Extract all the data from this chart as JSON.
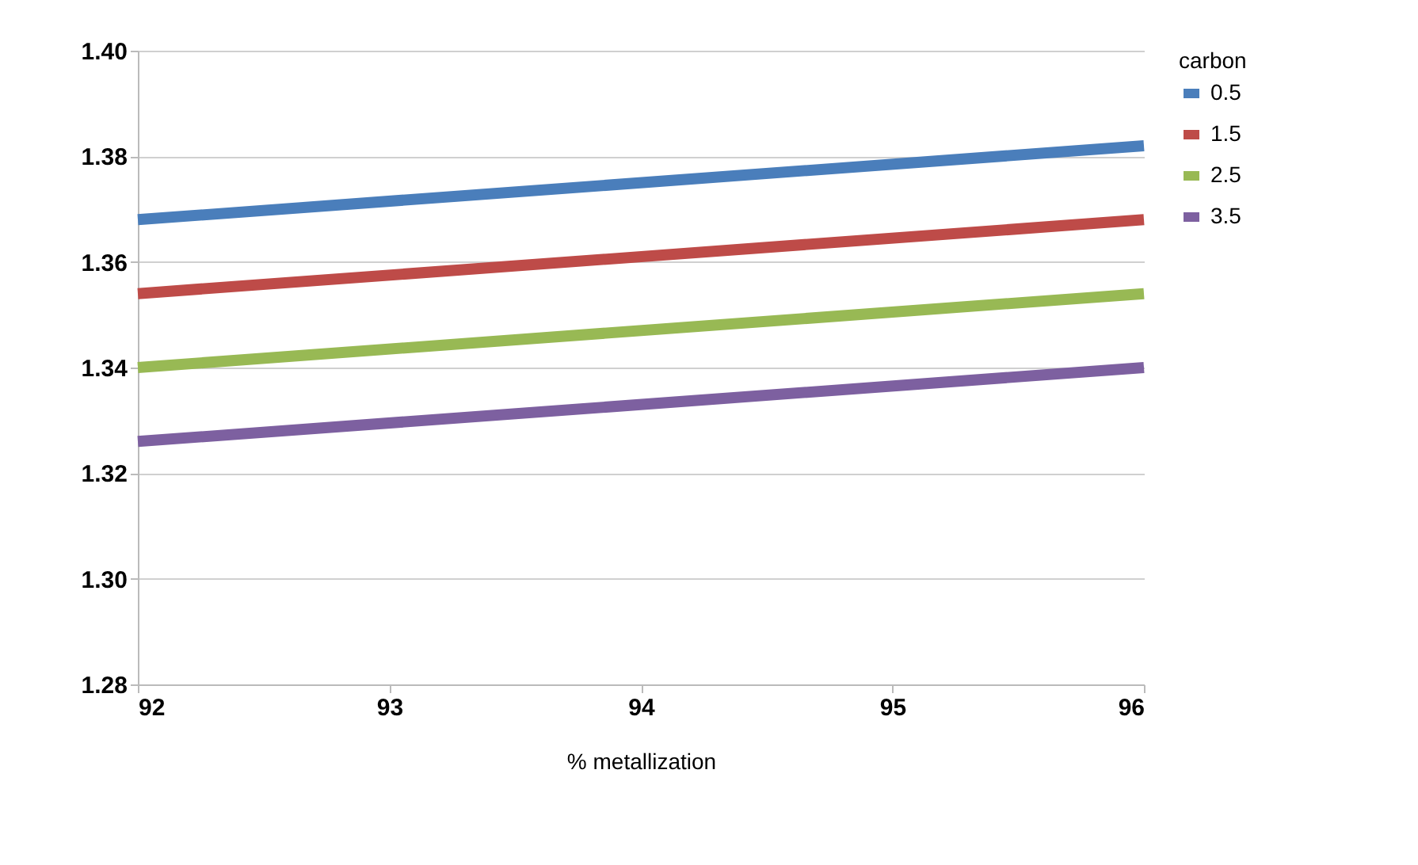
{
  "chart_data": {
    "type": "line",
    "xlabel": "% metallization",
    "legend_title": "carbon",
    "x": [
      92,
      96
    ],
    "series": [
      {
        "name": "0.5",
        "color": "#4a7ebb",
        "values": [
          1.368,
          1.382
        ]
      },
      {
        "name": "1.5",
        "color": "#be4b48",
        "values": [
          1.354,
          1.368
        ]
      },
      {
        "name": "2.5",
        "color": "#98b954",
        "values": [
          1.34,
          1.354
        ]
      },
      {
        "name": "3.5",
        "color": "#7d60a0",
        "values": [
          1.326,
          1.34
        ]
      }
    ],
    "xlim": [
      92,
      96
    ],
    "xticks": [
      92,
      93,
      94,
      95,
      96
    ],
    "ylim": [
      1.28,
      1.4
    ],
    "yticks": [
      {
        "value": 1.28,
        "label": "1.28"
      },
      {
        "value": 1.3,
        "label": "1.30"
      },
      {
        "value": 1.32,
        "label": "1.32"
      },
      {
        "value": 1.34,
        "label": "1.34"
      },
      {
        "value": 1.36,
        "label": "1.36"
      },
      {
        "value": 1.38,
        "label": "1.38"
      },
      {
        "value": 1.4,
        "label": "1.40"
      }
    ],
    "grid": "y",
    "legend": "right",
    "marker": "none",
    "line_style": "solid"
  }
}
